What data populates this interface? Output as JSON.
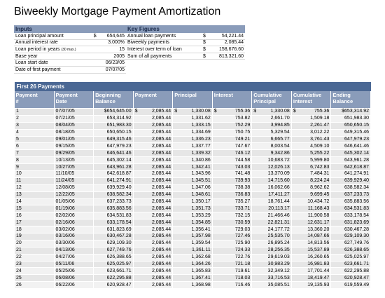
{
  "title": "Biweekly Mortgage Payment Amortization",
  "inputs": {
    "header": "Inputs",
    "rows": [
      {
        "label": "Loan principal amount",
        "sym": "$",
        "value": "654,645"
      },
      {
        "label": "Annual interest rate",
        "value": "3.000%"
      },
      {
        "label": "Loan period in years",
        "note": "(30 max.)",
        "value": "15"
      },
      {
        "label": "Base year",
        "value": "2005"
      },
      {
        "label": "Loan start date",
        "value": "06/23/05"
      },
      {
        "label": "Date of first payment",
        "value": "07/07/05"
      }
    ]
  },
  "key_figures": {
    "header": "Key Figures",
    "rows": [
      {
        "label": "Annual loan payments",
        "sym": "$",
        "value": "54,221.44"
      },
      {
        "label": "Biweekly payments",
        "sym": "$",
        "value": "2,085.44"
      },
      {
        "label": "Interest over term of loan",
        "sym": "$",
        "value": "158,676.60"
      },
      {
        "label": "Sum of all payments",
        "sym": "$",
        "value": "813,321.60"
      }
    ]
  },
  "table": {
    "title": "First 26 Payments",
    "columns": [
      [
        "Payment",
        "#"
      ],
      [
        "Payment",
        "Date"
      ],
      [
        "Beginning",
        "Balance"
      ],
      [
        "Payment"
      ],
      [
        "Principal"
      ],
      [
        "Interest"
      ],
      [
        "Cumulative",
        "Principal"
      ],
      [
        "Cumulative",
        "Interest"
      ],
      [
        "Ending",
        "Balance"
      ]
    ],
    "rows": [
      [
        "1",
        "07/07/05",
        "$654,645.00",
        {
          "sym": "$",
          "num": "2,085.44"
        },
        {
          "sym": "$",
          "num": "1,330.08"
        },
        {
          "sym": "$",
          "num": "755.36"
        },
        {
          "sym": "$",
          "num": "1,330.08"
        },
        {
          "sym": "$",
          "num": "755.36"
        },
        "$653,314.92"
      ],
      [
        "2",
        "07/21/05",
        "653,314.92",
        "2,085.44",
        "1,331.62",
        "753.82",
        "2,661.70",
        "1,509.18",
        "651,983.30"
      ],
      [
        "3",
        "08/04/05",
        "651,983.30",
        "2,085.44",
        "1,333.15",
        "752.29",
        "3,994.85",
        "2,261.47",
        "650,650.15"
      ],
      [
        "4",
        "08/18/05",
        "650,650.15",
        "2,085.44",
        "1,334.69",
        "750.75",
        "5,329.54",
        "3,012.22",
        "649,315.46"
      ],
      [
        "5",
        "09/01/05",
        "649,315.46",
        "2,085.44",
        "1,336.23",
        "749.21",
        "6,665.77",
        "3,761.43",
        "647,979.23"
      ],
      [
        "6",
        "09/15/05",
        "647,979.23",
        "2,085.44",
        "1,337.77",
        "747.67",
        "8,003.54",
        "4,509.10",
        "646,641.46"
      ],
      [
        "7",
        "09/29/05",
        "646,641.46",
        "2,085.44",
        "1,339.32",
        "746.12",
        "9,342.86",
        "5,255.22",
        "645,302.14"
      ],
      [
        "8",
        "10/13/05",
        "645,302.14",
        "2,085.44",
        "1,340.86",
        "744.58",
        "10,683.72",
        "5,999.80",
        "643,961.28"
      ],
      [
        "9",
        "10/27/05",
        "643,961.28",
        "2,085.44",
        "1,342.41",
        "743.03",
        "12,026.13",
        "6,742.83",
        "642,618.87"
      ],
      [
        "10",
        "11/10/05",
        "642,618.87",
        "2,085.44",
        "1,343.96",
        "741.48",
        "13,370.09",
        "7,484.31",
        "641,274.91"
      ],
      [
        "11",
        "11/24/05",
        "641,274.91",
        "2,085.44",
        "1,345.51",
        "739.93",
        "14,715.60",
        "8,224.24",
        "639,929.40"
      ],
      [
        "12",
        "12/08/05",
        "639,929.40",
        "2,085.44",
        "1,347.06",
        "738.38",
        "16,062.66",
        "8,962.62",
        "638,582.34"
      ],
      [
        "13",
        "12/22/05",
        "638,582.34",
        "2,085.44",
        "1,348.61",
        "736.83",
        "17,411.27",
        "9,699.45",
        "637,233.73"
      ],
      [
        "14",
        "01/05/06",
        "637,233.73",
        "2,085.44",
        "1,350.17",
        "735.27",
        "18,761.44",
        "10,434.72",
        "635,883.56"
      ],
      [
        "15",
        "01/19/06",
        "635,883.56",
        "2,085.44",
        "1,351.73",
        "733.71",
        "20,113.17",
        "11,168.43",
        "634,531.83"
      ],
      [
        "16",
        "02/02/06",
        "634,531.83",
        "2,085.44",
        "1,353.29",
        "732.15",
        "21,466.46",
        "11,900.58",
        "633,178.54"
      ],
      [
        "17",
        "02/16/06",
        "633,178.54",
        "2,085.44",
        "1,354.85",
        "730.59",
        "22,821.31",
        "12,631.17",
        "631,823.69"
      ],
      [
        "18",
        "03/02/06",
        "631,823.69",
        "2,085.44",
        "1,356.41",
        "729.03",
        "24,177.72",
        "13,360.20",
        "630,467.28"
      ],
      [
        "19",
        "03/16/06",
        "630,467.28",
        "2,085.44",
        "1,357.98",
        "727.46",
        "25,535.70",
        "14,087.66",
        "629,109.30"
      ],
      [
        "20",
        "03/30/06",
        "629,109.30",
        "2,085.44",
        "1,359.54",
        "725.90",
        "26,895.24",
        "14,813.56",
        "627,749.76"
      ],
      [
        "21",
        "04/13/06",
        "627,749.76",
        "2,085.44",
        "1,361.11",
        "724.33",
        "28,256.35",
        "15,537.89",
        "626,388.65"
      ],
      [
        "22",
        "04/27/06",
        "626,388.65",
        "2,085.44",
        "1,362.68",
        "722.76",
        "29,619.03",
        "16,260.65",
        "625,025.97"
      ],
      [
        "23",
        "05/11/06",
        "625,025.97",
        "2,085.44",
        "1,364.26",
        "721.18",
        "30,983.29",
        "16,981.83",
        "623,661.71"
      ],
      [
        "24",
        "05/25/06",
        "623,661.71",
        "2,085.44",
        "1,365.83",
        "719.61",
        "32,349.12",
        "17,701.44",
        "622,295.88"
      ],
      [
        "25",
        "06/08/06",
        "622,295.88",
        "2,085.44",
        "1,367.41",
        "718.03",
        "33,716.53",
        "18,419.47",
        "620,928.47"
      ],
      [
        "26",
        "06/22/06",
        "620,928.47",
        "2,085.44",
        "1,368.98",
        "716.46",
        "35,085.51",
        "19,135.93",
        "619,559.49"
      ]
    ]
  }
}
